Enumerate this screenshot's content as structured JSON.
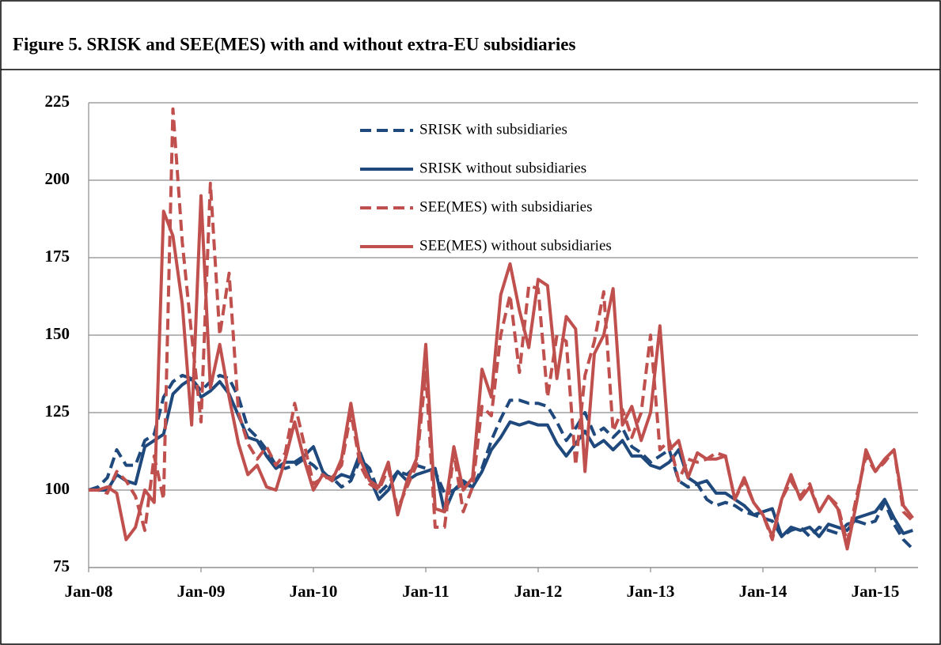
{
  "chart_data": {
    "type": "line",
    "title": "Figure 5. SRISK and SEE(MES) with and without extra-EU subsidiaries",
    "categories": [
      "Jan-08",
      null,
      null,
      null,
      null,
      null,
      null,
      null,
      null,
      null,
      null,
      null,
      "Jan-09",
      null,
      null,
      null,
      null,
      null,
      null,
      null,
      null,
      null,
      null,
      null,
      "Jan-10",
      null,
      null,
      null,
      null,
      null,
      null,
      null,
      null,
      null,
      null,
      null,
      "Jan-11",
      null,
      null,
      null,
      null,
      null,
      null,
      null,
      null,
      null,
      null,
      null,
      "Jan-12",
      null,
      null,
      null,
      null,
      null,
      null,
      null,
      null,
      null,
      null,
      null,
      "Jan-13",
      null,
      null,
      null,
      null,
      null,
      null,
      null,
      null,
      null,
      null,
      null,
      "Jan-14",
      null,
      null,
      null,
      null,
      null,
      null,
      null,
      null,
      null,
      null,
      null,
      "Jan-15",
      null,
      null,
      null,
      null
    ],
    "ylim": [
      75,
      225
    ],
    "yticks": [
      75,
      100,
      125,
      150,
      175,
      200,
      225
    ],
    "grid": true,
    "series": [
      {
        "name": "SRISK with subsidiaries",
        "color": "#1f497d",
        "style": "dashed",
        "values": [
          100,
          101,
          104,
          113,
          108,
          108,
          116,
          118,
          130,
          135,
          137,
          136,
          132,
          135,
          137,
          136,
          130,
          120,
          117,
          113,
          108,
          107,
          108,
          110,
          108,
          105,
          104,
          101,
          103,
          110,
          107,
          99,
          102,
          106,
          105,
          108,
          107,
          106,
          99,
          100,
          103,
          101,
          107,
          116,
          123,
          129,
          129,
          128,
          128,
          127,
          122,
          116,
          120,
          125,
          118,
          120,
          117,
          120,
          114,
          112,
          109,
          111,
          113,
          103,
          101,
          102,
          97,
          95,
          96,
          95,
          93,
          92,
          91,
          90,
          85,
          87,
          88,
          85,
          88,
          87,
          86,
          89,
          90,
          89,
          90,
          96,
          89,
          84,
          81
        ]
      },
      {
        "name": "SRISK without subsidiaries",
        "color": "#1f497d",
        "style": "solid",
        "values": [
          100,
          100,
          100,
          105,
          103,
          102,
          114,
          116,
          118,
          131,
          134,
          136,
          130,
          132,
          135,
          131,
          124,
          117,
          116,
          111,
          107,
          109,
          109,
          111,
          114,
          106,
          103,
          105,
          104,
          112,
          104,
          97,
          100,
          106,
          103,
          105,
          106,
          107,
          93,
          100,
          102,
          101,
          106,
          113,
          117,
          122,
          121,
          122,
          121,
          121,
          115,
          111,
          115,
          119,
          114,
          116,
          113,
          116,
          111,
          111,
          108,
          107,
          109,
          113,
          104,
          102,
          103,
          99,
          99,
          97,
          95,
          92,
          93,
          94,
          85,
          88,
          87,
          88,
          85,
          89,
          88,
          87,
          91,
          92,
          93,
          97,
          91,
          86,
          87
        ]
      },
      {
        "name": "SEE(MES) with subsidiaries",
        "color": "#c0504d",
        "style": "dashed",
        "values": [
          100,
          100,
          99,
          106,
          103,
          98,
          87,
          111,
          97,
          223,
          180,
          150,
          122,
          199,
          150,
          170,
          125,
          115,
          110,
          114,
          108,
          112,
          128,
          115,
          102,
          104,
          104,
          108,
          125,
          108,
          102,
          100,
          107,
          94,
          101,
          108,
          138,
          88,
          88,
          112,
          93,
          101,
          127,
          124,
          150,
          163,
          138,
          166,
          165,
          130,
          150,
          148,
          108,
          137,
          148,
          164,
          119,
          126,
          117,
          125,
          150,
          113,
          116,
          103,
          110,
          109,
          110,
          112,
          111,
          97,
          103,
          96,
          92,
          84,
          97,
          103,
          98,
          102,
          93,
          98,
          95,
          83,
          98,
          111,
          106,
          109,
          113,
          93,
          90
        ]
      },
      {
        "name": "SEE(MES) without subsidiaries",
        "color": "#c0504d",
        "style": "solid",
        "values": [
          100,
          100,
          101,
          99,
          84,
          88,
          100,
          96,
          190,
          182,
          160,
          121,
          195,
          133,
          147,
          130,
          115,
          105,
          108,
          101,
          100,
          110,
          122,
          110,
          100,
          105,
          103,
          110,
          128,
          110,
          103,
          101,
          109,
          92,
          103,
          110,
          147,
          94,
          93,
          114,
          100,
          104,
          139,
          130,
          163,
          173,
          158,
          146,
          168,
          166,
          136,
          156,
          152,
          106,
          144,
          150,
          165,
          121,
          127,
          116,
          125,
          153,
          113,
          116,
          104,
          112,
          110,
          110,
          111,
          97,
          104,
          96,
          92,
          85,
          97,
          105,
          97,
          101,
          93,
          98,
          94,
          81,
          96,
          113,
          106,
          110,
          113,
          95,
          91
        ]
      }
    ]
  }
}
